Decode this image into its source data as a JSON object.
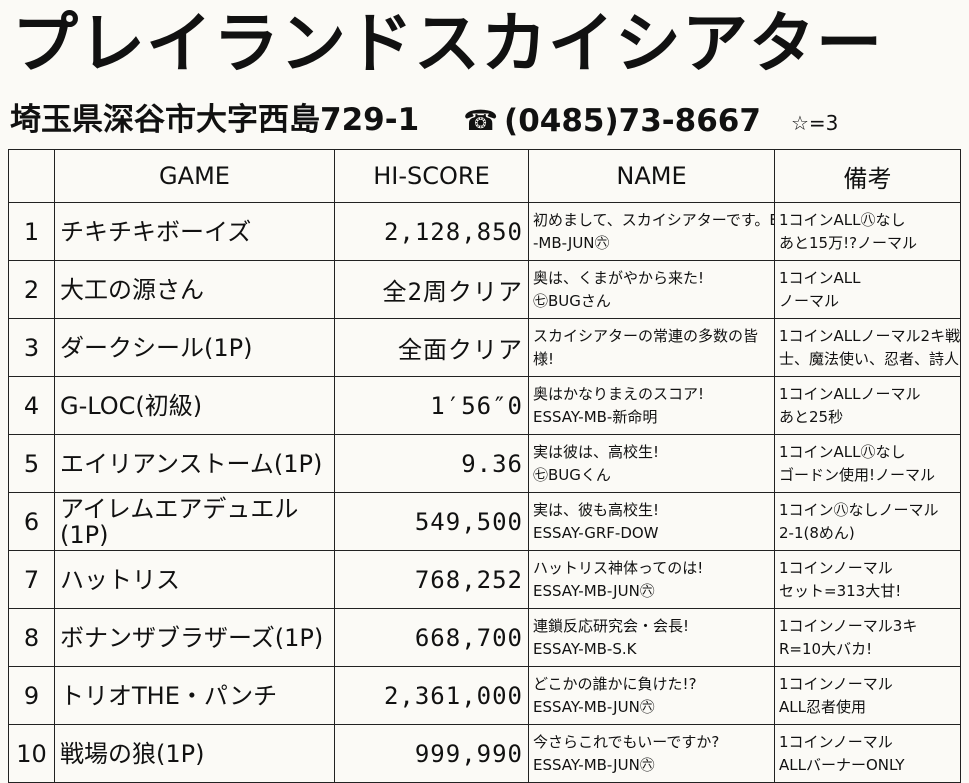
{
  "header": {
    "title": "プレイランドスカイシアター",
    "address": "埼玉県深谷市大字西島729-1",
    "phone_icon": "☎",
    "phone": "(0485)73-8667",
    "rating": "☆=3"
  },
  "table": {
    "headers": [
      "",
      "GAME",
      "HI-SCORE",
      "NAME",
      "備考"
    ],
    "rows": [
      {
        "rank": "1",
        "game": "チキチキボーイズ",
        "score": "2,128,850",
        "name": [
          "初めまして、スカイシアターです。ESSAY",
          "-MB-JUN㊅"
        ],
        "note": [
          "1コインALL㊇なし",
          "あと15万!?ノーマル"
        ]
      },
      {
        "rank": "2",
        "game": "大工の源さん",
        "score": "全2周クリア",
        "name": [
          "奥は、くまがやから来た!",
          "㊆BUGさん"
        ],
        "note": [
          "1コインALL",
          "ノーマル"
        ]
      },
      {
        "rank": "3",
        "game": "ダークシール(1P)",
        "score": "全面クリア",
        "name": [
          "スカイシアターの常連の多数の皆",
          "様!"
        ],
        "note": [
          "1コインALLノーマル2キ戦",
          "士、魔法使い、忍者、詩人"
        ]
      },
      {
        "rank": "4",
        "game": "G-LOC(初級)",
        "score": "1′56″0",
        "name": [
          "奥はかなりまえのスコア!",
          "ESSAY-MB-新命明"
        ],
        "note": [
          "1コインALLノーマル",
          "あと25秒"
        ]
      },
      {
        "rank": "5",
        "game": "エイリアンストーム(1P)",
        "score": "9.36",
        "name": [
          "実は彼は、高校生!",
          "㊆BUGくん"
        ],
        "note": [
          "1コインALL㊇なし",
          "ゴードン使用!ノーマル"
        ]
      },
      {
        "rank": "6",
        "game": "アイレムエアデュエル(1P)",
        "score": "549,500",
        "name": [
          "実は、彼も高校生!",
          "ESSAY-GRF-DOW"
        ],
        "note": [
          "1コイン㊇なしノーマル",
          "2-1(8めん)"
        ]
      },
      {
        "rank": "7",
        "game": "ハットリス",
        "score": "768,252",
        "name": [
          "ハットリス神体ってのは!",
          "ESSAY-MB-JUN㊅"
        ],
        "note": [
          "1コインノーマル",
          "セット=313大甘!"
        ]
      },
      {
        "rank": "8",
        "game": "ボナンザブラザーズ(1P)",
        "score": "668,700",
        "name": [
          "連鎖反応研究会・会長!",
          "ESSAY-MB-S.K"
        ],
        "note": [
          "1コインノーマル3キ",
          "R=10大バカ!"
        ]
      },
      {
        "rank": "9",
        "game": "トリオTHE・パンチ",
        "score": "2,361,000",
        "name": [
          "どこかの誰かに負けた!?",
          "ESSAY-MB-JUN㊅"
        ],
        "note": [
          "1コインノーマル",
          "ALL忍者使用"
        ]
      },
      {
        "rank": "10",
        "game": "戦場の狼(1P)",
        "score": "999,990",
        "name": [
          "今さらこれでもいーですか?",
          "ESSAY-MB-JUN㊅"
        ],
        "note": [
          "1コインノーマル",
          "ALLバーナーONLY"
        ]
      }
    ]
  }
}
